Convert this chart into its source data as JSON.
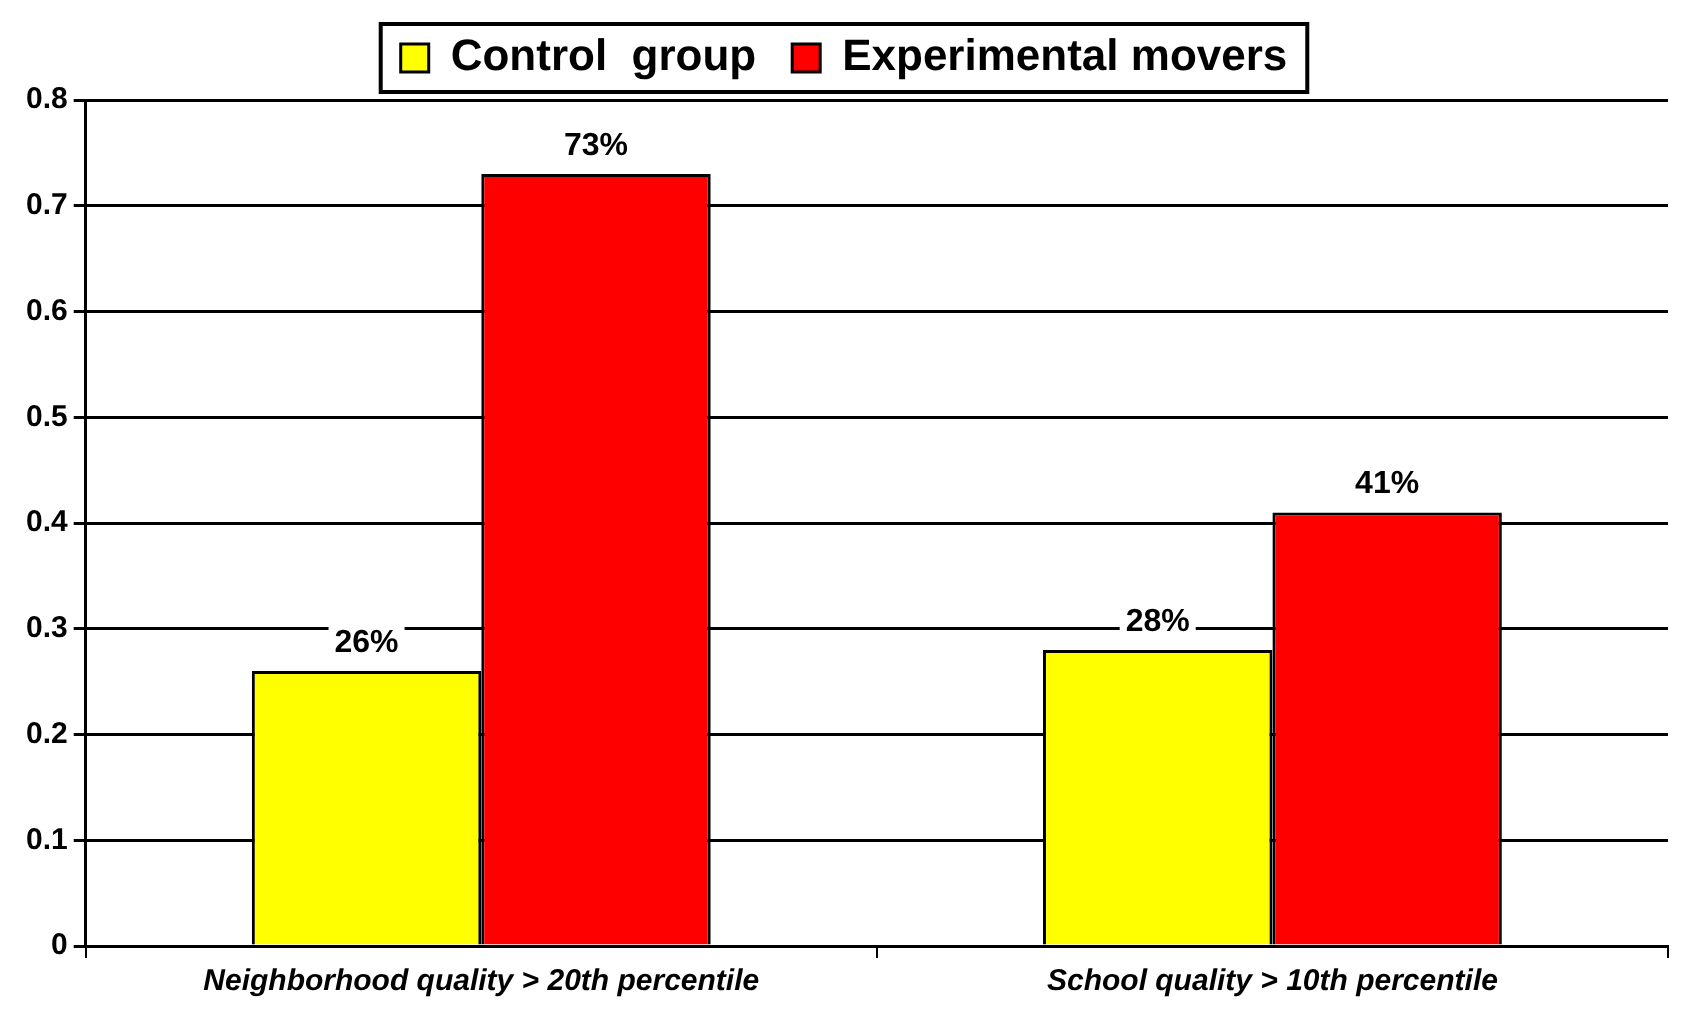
{
  "chart_data": {
    "type": "bar",
    "categories": [
      "Neighborhood quality > 20th percentile",
      "School quality > 10th percentile"
    ],
    "series": [
      {
        "name": "Control  group",
        "color": "#ffff00",
        "values": [
          0.26,
          0.28
        ],
        "value_labels": [
          "26%",
          "28%"
        ]
      },
      {
        "name": "Experimental movers",
        "color": "#ff0000",
        "values": [
          0.73,
          0.41
        ],
        "value_labels": [
          "73%",
          "41%"
        ]
      }
    ],
    "ylim": [
      0,
      0.8
    ],
    "yticks": [
      0,
      0.1,
      0.2,
      0.3,
      0.4,
      0.5,
      0.6,
      0.7,
      0.8
    ],
    "grid": "y",
    "legend": "top"
  }
}
